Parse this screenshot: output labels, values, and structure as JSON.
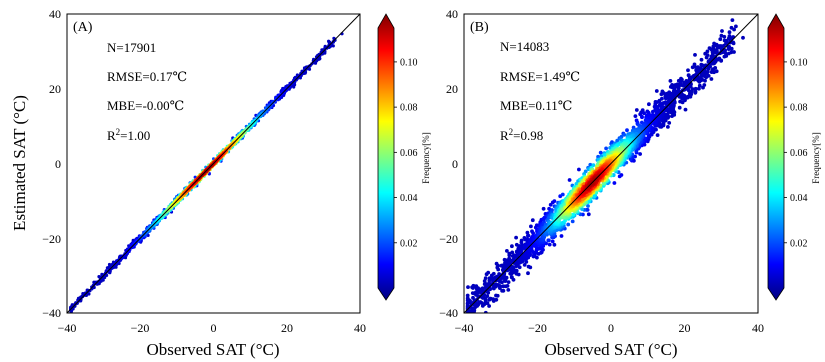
{
  "chart_data": [
    {
      "type": "scatter",
      "panel_label": "(A)",
      "xlabel": "Observed SAT (°C)",
      "ylabel": "Estimated SAT (°C)",
      "xlim": [
        -40,
        40
      ],
      "ylim": [
        -40,
        40
      ],
      "x_ticks": [
        "−40",
        "−20",
        "0",
        "20",
        "40"
      ],
      "y_ticks": [
        "40",
        "20",
        "0",
        "−20",
        "−40"
      ],
      "reference_line": "1:1",
      "stats": {
        "n": "N=17901",
        "rmse": "RMSE=0.17℃",
        "mbe": "MBE=-0.00℃",
        "r2_label": "R",
        "r2_sup": "2",
        "r2_value": "=1.00"
      },
      "spread": 0.5,
      "density_center": -2,
      "density_sigma": 9,
      "colorbar": {
        "label": "Frequency[%]",
        "ticks": [
          "0.10",
          "0.08",
          "0.06",
          "0.04",
          "0.02"
        ],
        "tick_values": [
          0.1,
          0.08,
          0.06,
          0.04,
          0.02
        ],
        "max": 0.115,
        "colormap": "jet"
      }
    },
    {
      "type": "scatter",
      "panel_label": "(B)",
      "xlabel": "Observed SAT (°C)",
      "ylabel": "",
      "xlim": [
        -40,
        40
      ],
      "ylim": [
        -40,
        40
      ],
      "x_ticks": [
        "−40",
        "−20",
        "0",
        "20",
        "40"
      ],
      "y_ticks": [
        "40",
        "20",
        "0",
        "−20",
        "−40"
      ],
      "reference_line": "1:1",
      "stats": {
        "n": "N=14083",
        "rmse": "RMSE=1.49℃",
        "mbe": "MBE=0.11℃",
        "r2_label": "R",
        "r2_sup": "2",
        "r2_value": "=0.98"
      },
      "spread": 2.2,
      "density_center": -5,
      "density_sigma": 7,
      "colorbar": {
        "label": "Frequency[%]",
        "ticks": [
          "0.10",
          "0.08",
          "0.06",
          "0.04",
          "0.02"
        ],
        "tick_values": [
          0.1,
          0.08,
          0.06,
          0.04,
          0.02
        ],
        "max": 0.115,
        "colormap": "jet"
      }
    }
  ]
}
